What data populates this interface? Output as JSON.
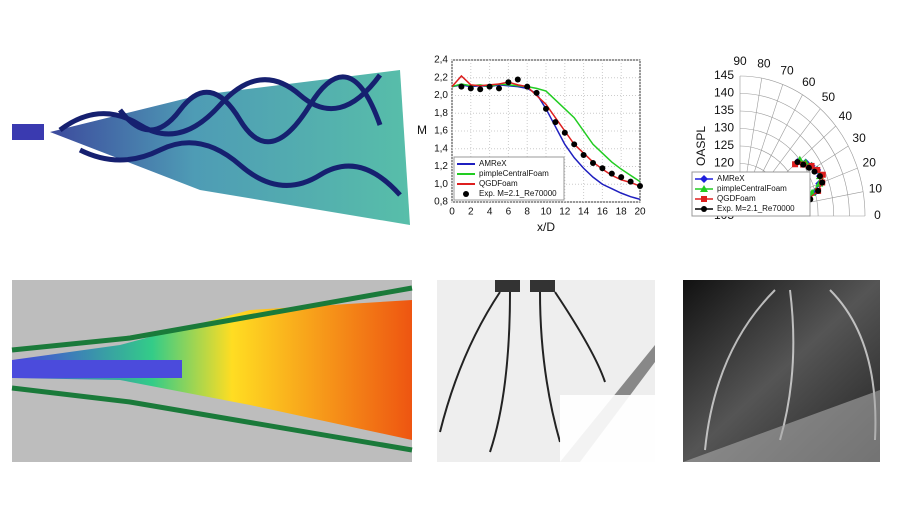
{
  "chart_data": [
    {
      "type": "line",
      "xlabel": "x/D",
      "ylabel": "M",
      "x": [
        0,
        1,
        2,
        3,
        4,
        5,
        6,
        7,
        8,
        9,
        10,
        11,
        12,
        13,
        14,
        15,
        16,
        17,
        18,
        19,
        20
      ],
      "xlim": [
        0,
        20
      ],
      "xticks": [
        0,
        2,
        4,
        6,
        8,
        10,
        12,
        14,
        16,
        18,
        20
      ],
      "ylim": [
        0.8,
        2.4
      ],
      "yticks": [
        {
          "value": 0.8,
          "label": "0,8"
        },
        {
          "value": 1.0,
          "label": "1,0"
        },
        {
          "value": 1.2,
          "label": "1,2"
        },
        {
          "value": 1.4,
          "label": "1,4"
        },
        {
          "value": 1.6,
          "label": "1,6"
        },
        {
          "value": 1.8,
          "label": "1,8"
        },
        {
          "value": 2.0,
          "label": "2,0"
        },
        {
          "value": 2.2,
          "label": "2,2"
        },
        {
          "value": 2.4,
          "label": "2,4"
        }
      ],
      "grid": true,
      "legend": "lower left",
      "series": [
        {
          "name": "AMReX",
          "color": "#1f1fbf",
          "style": "line",
          "values": [
            2.1,
            2.12,
            2.1,
            2.11,
            2.1,
            2.12,
            2.11,
            2.1,
            2.08,
            2.02,
            1.85,
            1.65,
            1.45,
            1.3,
            1.18,
            1.08,
            1.0,
            0.95,
            0.9,
            0.86,
            0.83
          ]
        },
        {
          "name": "pimpleCentralFoam",
          "color": "#22cc22",
          "style": "line",
          "values": [
            2.1,
            2.13,
            2.11,
            2.12,
            2.1,
            2.13,
            2.12,
            2.11,
            2.1,
            2.08,
            2.05,
            1.95,
            1.85,
            1.75,
            1.6,
            1.45,
            1.35,
            1.25,
            1.17,
            1.1,
            1.03
          ]
        },
        {
          "name": "QGDFoam",
          "color": "#dd1f1f",
          "style": "line",
          "values": [
            2.1,
            2.22,
            2.12,
            2.11,
            2.12,
            2.13,
            2.15,
            2.12,
            2.1,
            2.0,
            1.9,
            1.75,
            1.6,
            1.45,
            1.35,
            1.25,
            1.17,
            1.1,
            1.05,
            1.02,
            0.98
          ]
        },
        {
          "name": "Exp. M=2.1_Re70000",
          "color": "#000000",
          "style": "markers",
          "values": [
            null,
            2.1,
            2.08,
            2.07,
            2.1,
            2.08,
            2.15,
            2.18,
            2.1,
            2.03,
            1.85,
            1.7,
            1.58,
            1.45,
            1.33,
            1.24,
            1.18,
            1.12,
            1.08,
            1.03,
            0.98
          ]
        }
      ]
    },
    {
      "type": "polar",
      "ylabel": "OASPL",
      "x": [
        12,
        16,
        20,
        24,
        28,
        32,
        36,
        40
      ],
      "xlim": [
        0,
        90
      ],
      "xticks": [
        0,
        10,
        20,
        30,
        40,
        50,
        60,
        70,
        80,
        90
      ],
      "ylim": [
        105,
        145
      ],
      "yticks": [
        105,
        110,
        115,
        120,
        125,
        130,
        135,
        140,
        145
      ],
      "legend": "lower left",
      "series": [
        {
          "name": "AMReX",
          "color": "#1f1fdd",
          "marker": "diamond",
          "values": [
            126,
            130,
            132,
            133,
            133,
            132,
            131,
            129
          ]
        },
        {
          "name": "pimpleCentralFoam",
          "color": "#22cc22",
          "marker": "triangle",
          "values": [
            125,
            129,
            132,
            133,
            133,
            132,
            131,
            130
          ]
        },
        {
          "name": "QGDFoam",
          "color": "#dd1f1f",
          "marker": "square",
          "values": [
            127,
            131,
            133,
            134,
            133,
            132,
            130,
            128
          ]
        },
        {
          "name": "Exp. M=2.1_Re70000",
          "color": "#000000",
          "marker": "dot",
          "values": [
            128,
            131,
            133,
            133,
            132,
            131,
            130,
            129
          ]
        }
      ]
    }
  ]
}
